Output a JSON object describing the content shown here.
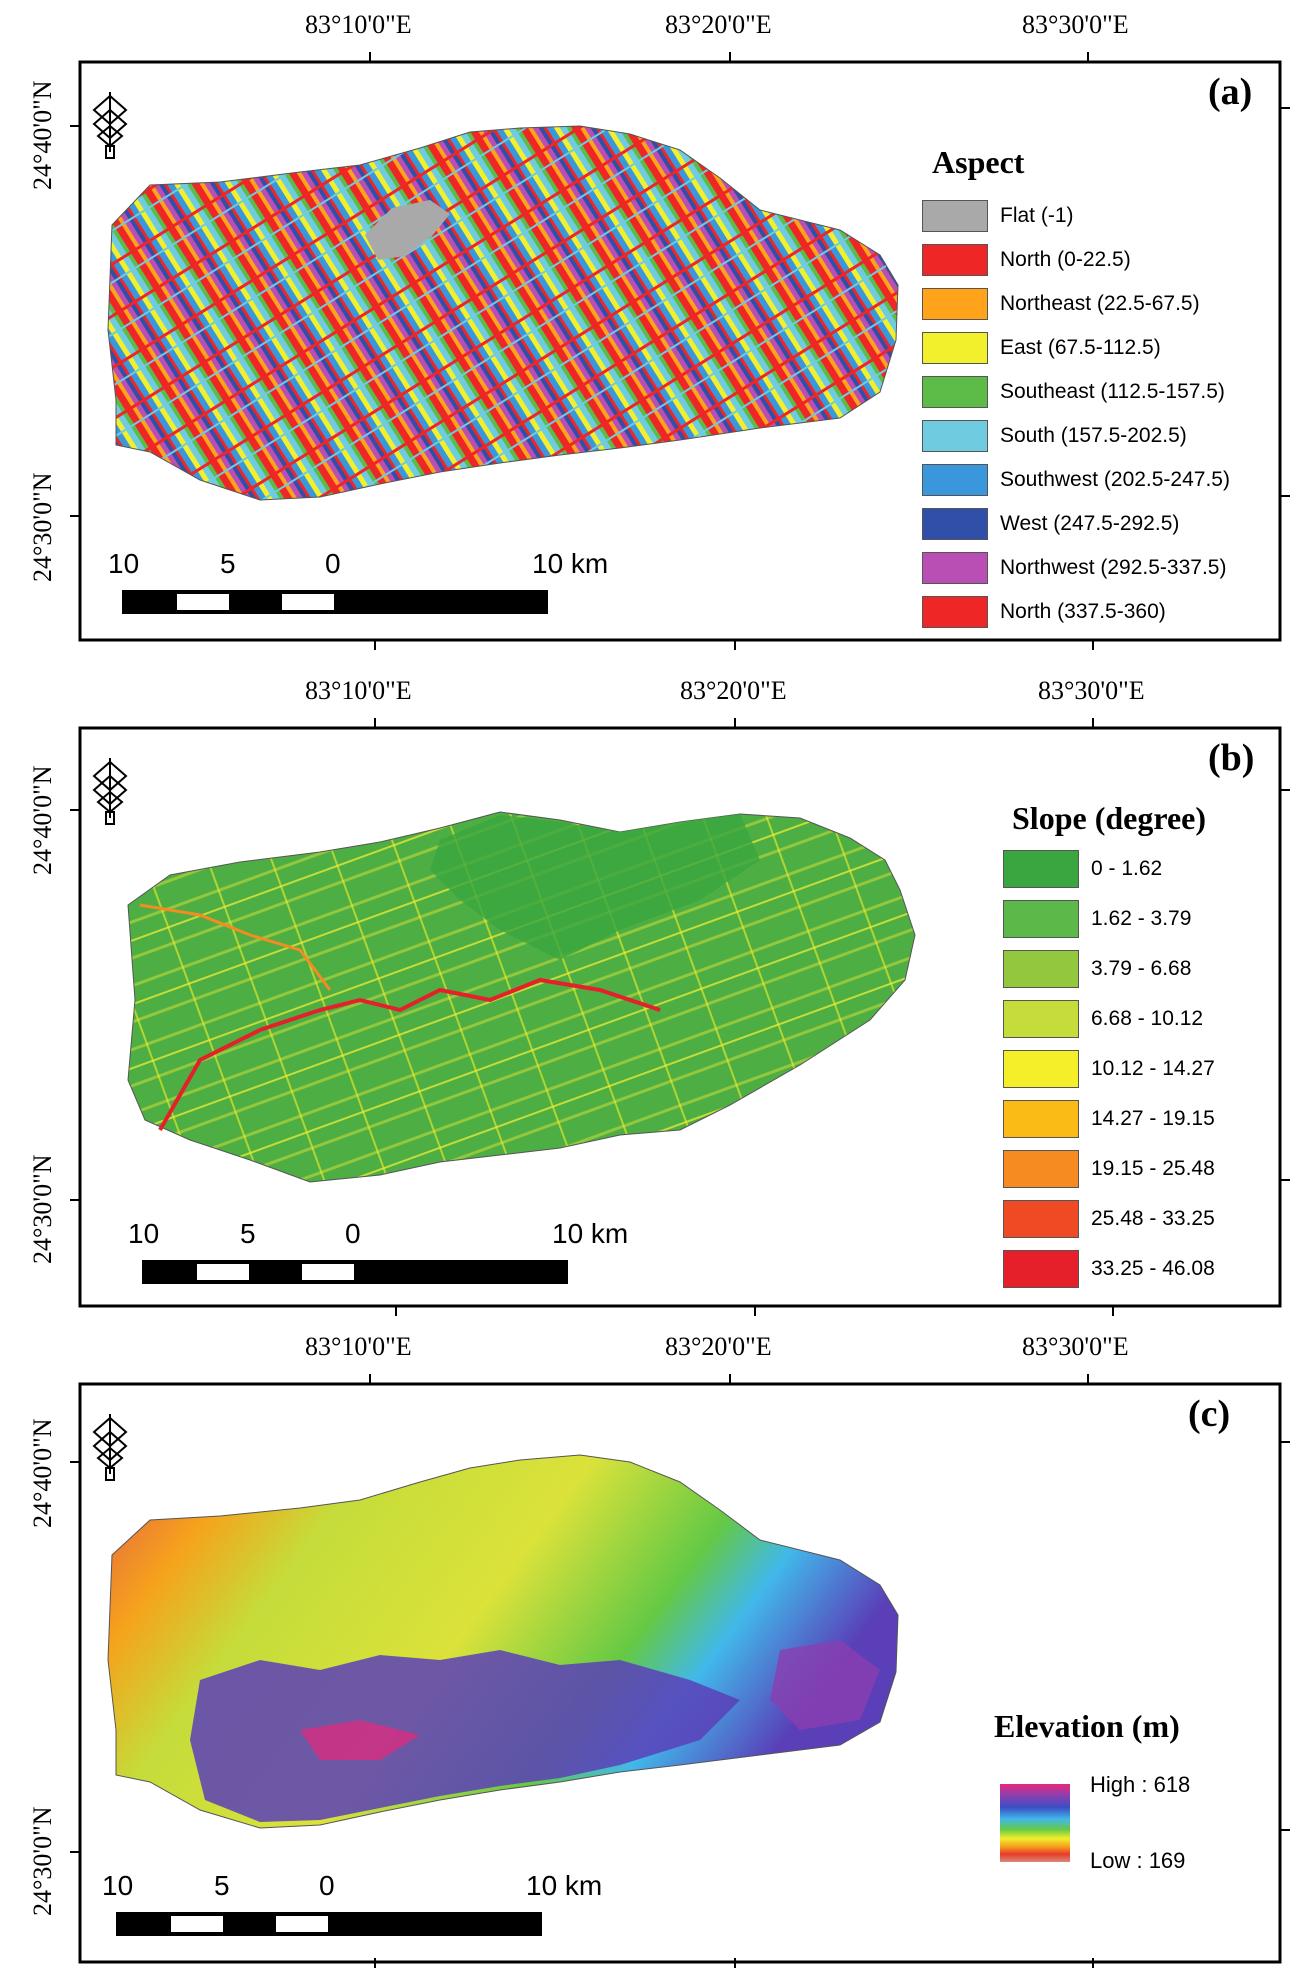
{
  "panels": [
    {
      "tag": "(a)",
      "lon_labels": [
        "83°10'0\"E",
        "83°20'0\"E",
        "83°30'0\"E"
      ],
      "lat_labels": [
        "24°40'0\"N",
        "24°30'0\"N"
      ],
      "north_arrow_letter": "N",
      "legend": {
        "title": "Aspect",
        "items": [
          {
            "label": "Flat (-1)",
            "color": "#a9a9a9"
          },
          {
            "label": "North (0-22.5)",
            "color": "#ee2626"
          },
          {
            "label": "Northeast (22.5-67.5)",
            "color": "#ffa31a"
          },
          {
            "label": "East (67.5-112.5)",
            "color": "#f2ef2c"
          },
          {
            "label": "Southeast (112.5-157.5)",
            "color": "#5dbb47"
          },
          {
            "label": "South (157.5-202.5)",
            "color": "#6fcbe0"
          },
          {
            "label": "Southwest (202.5-247.5)",
            "color": "#3b97dc"
          },
          {
            "label": "West (247.5-292.5)",
            "color": "#2f4fa8"
          },
          {
            "label": "Northwest (292.5-337.5)",
            "color": "#b94fb5"
          },
          {
            "label": "North (337.5-360)",
            "color": "#ee2626"
          }
        ]
      },
      "scalebar": [
        "10",
        "5",
        "0",
        "10 km"
      ]
    },
    {
      "tag": "(b)",
      "lon_labels": [
        "83°10'0\"E",
        "83°20'0\"E",
        "83°30'0\"E"
      ],
      "lat_labels": [
        "24°40'0\"N",
        "24°30'0\"N"
      ],
      "north_arrow_letter": "N",
      "legend": {
        "title": "Slope (degree)",
        "items": [
          {
            "label": "0 - 1.62",
            "color": "#3aa640"
          },
          {
            "label": "1.62 - 3.79",
            "color": "#5db84a"
          },
          {
            "label": "3.79 - 6.68",
            "color": "#93c83e"
          },
          {
            "label": "6.68 - 10.12",
            "color": "#c5dc3a"
          },
          {
            "label": "10.12 - 14.27",
            "color": "#f4ef28"
          },
          {
            "label": "14.27 - 19.15",
            "color": "#fbbb16"
          },
          {
            "label": "19.15 - 25.48",
            "color": "#f68b22"
          },
          {
            "label": "25.48 - 33.25",
            "color": "#ee4a24"
          },
          {
            "label": "33.25 - 46.08",
            "color": "#e5202a"
          }
        ]
      },
      "scalebar": [
        "10",
        "5",
        "0",
        "10 km"
      ]
    },
    {
      "tag": "(c)",
      "lon_labels": [
        "83°10'0\"E",
        "83°20'0\"E",
        "83°30'0\"E"
      ],
      "lat_labels": [
        "24°40'0\"N",
        "24°30'0\"N"
      ],
      "north_arrow_letter": "N",
      "legend": {
        "title": "Elevation (m)",
        "high_label": "High : 618",
        "low_label": "Low : 169",
        "ramp_colors": [
          "#e8287a",
          "#8a3fb0",
          "#3a4fc4",
          "#41b8ea",
          "#64c945",
          "#f2ef2c",
          "#f6a21c",
          "#e93a2a",
          "#d98a7a"
        ]
      },
      "scalebar": [
        "10",
        "5",
        "0",
        "10 km"
      ]
    }
  ]
}
